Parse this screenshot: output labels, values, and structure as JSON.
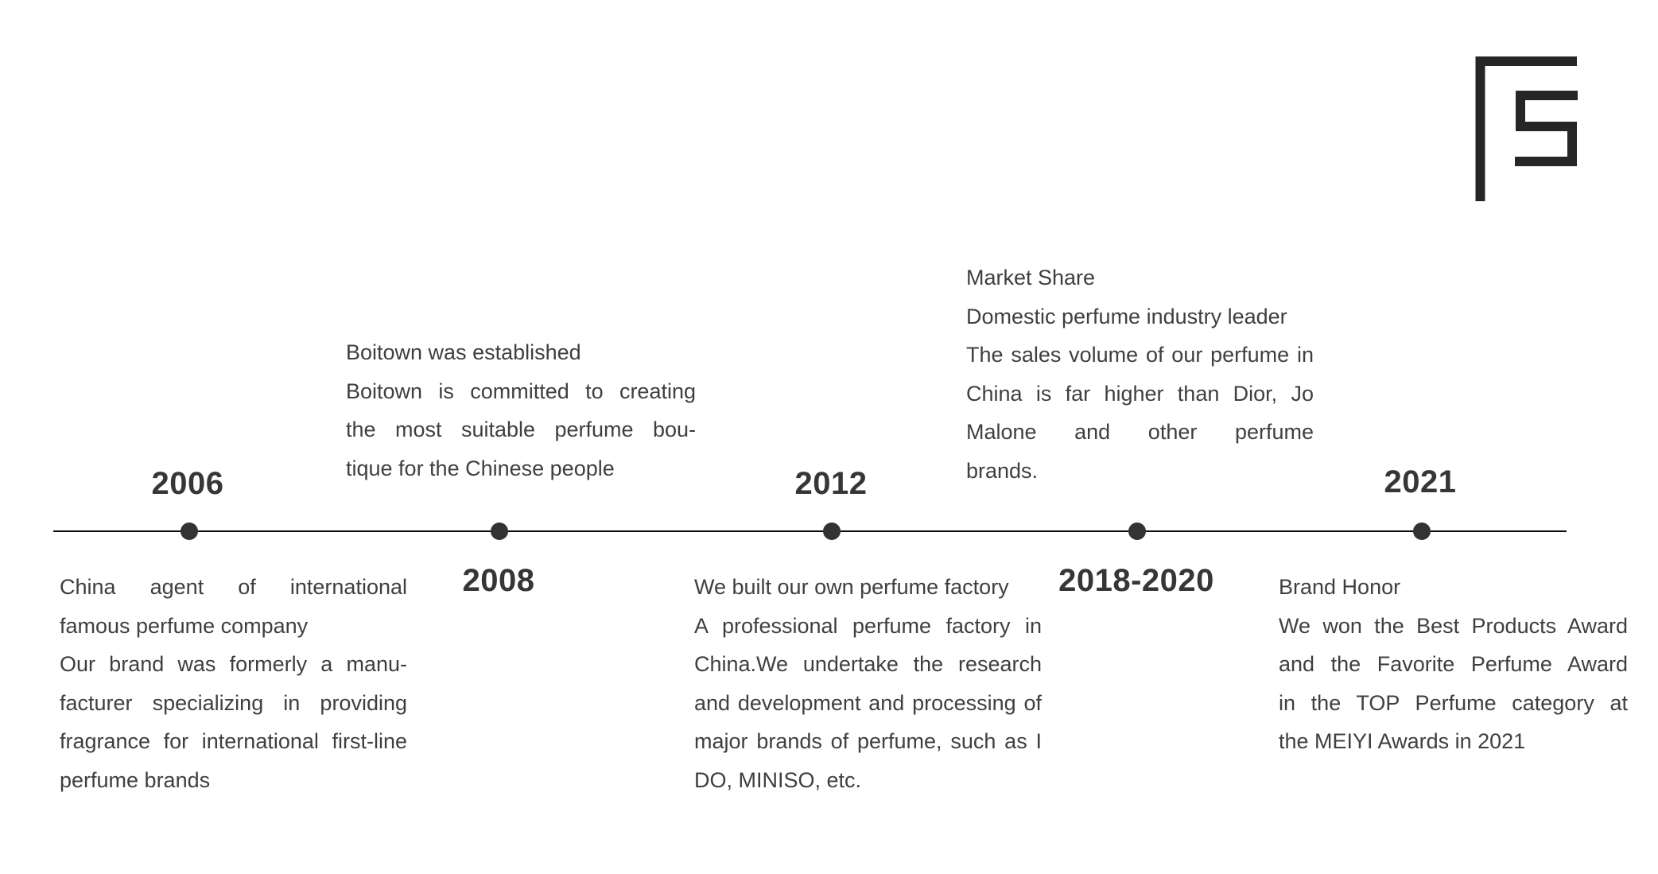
{
  "logo": {
    "name": "FS brand logo",
    "color": "#262626"
  },
  "timeline": {
    "line_color": "#0c0c0c",
    "dot_color": "#333333",
    "year_color": "#363636",
    "text_color": "#3f3f3f",
    "milestones": [
      {
        "year": "2006",
        "side": "below",
        "paragraphs": [
          [
            "China agent of international",
            "famous perfume company"
          ],
          [
            "Our brand was formerly a manu-",
            "facturer specializing in providing",
            "fragrance for international first-line",
            "perfume brands"
          ]
        ]
      },
      {
        "year": "2008",
        "side": "above",
        "paragraphs": [
          [
            "Boitown was established"
          ],
          [
            "Boitown is committed to creating",
            "the most suitable perfume bou-",
            "tique for the Chinese people"
          ]
        ]
      },
      {
        "year": "2012",
        "side": "below",
        "paragraphs": [
          [
            "We built our own perfume factory"
          ],
          [
            "A professional perfume factory in",
            "China.We undertake the research",
            "and development and processing of",
            "major brands of perfume, such as I",
            "DO, MINISO, etc."
          ]
        ]
      },
      {
        "year": "2018-2020",
        "side": "above",
        "paragraphs": [
          [
            "Market Share"
          ],
          [
            "Domestic perfume industry leader"
          ],
          [
            "The sales volume of our perfume in",
            "China is far higher than Dior, Jo",
            "Malone and other perfume",
            "brands."
          ]
        ]
      },
      {
        "year": "2021",
        "side": "below",
        "paragraphs": [
          [
            "Brand Honor"
          ],
          [
            "We won the Best Products Award",
            "and the Favorite Perfume Award",
            "in the TOP Perfume category at",
            "the MEIYI Awards in 2021"
          ]
        ]
      }
    ]
  }
}
